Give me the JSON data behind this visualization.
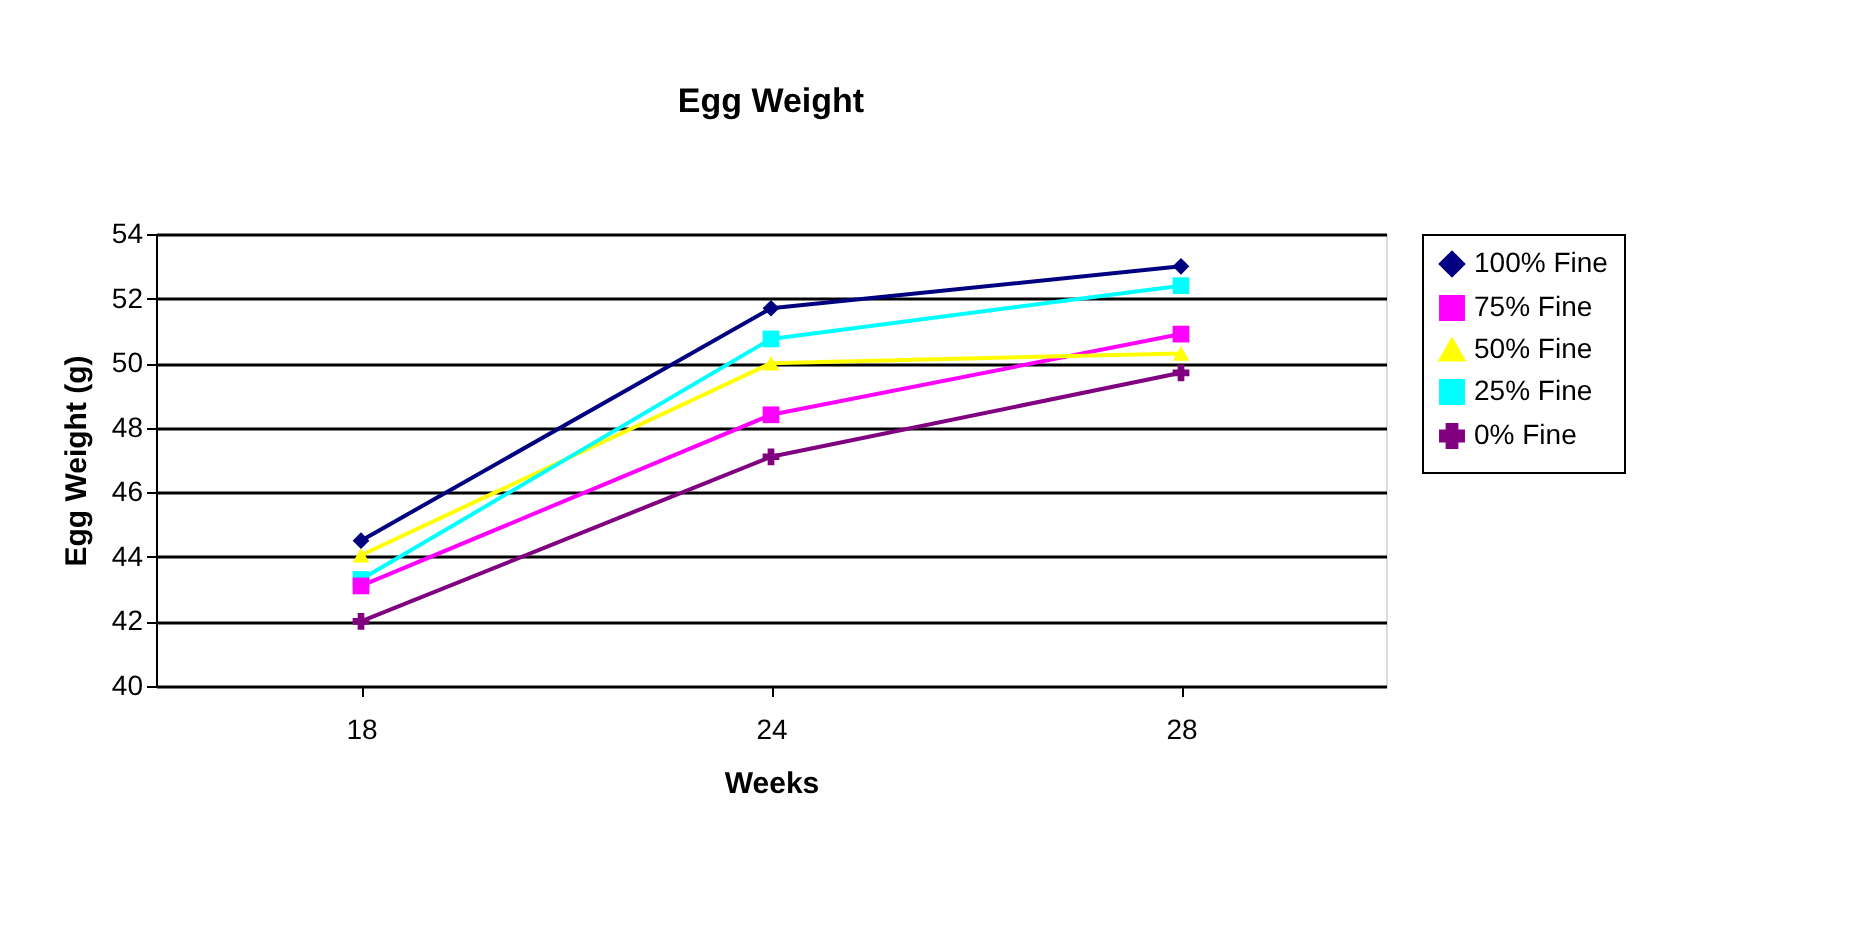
{
  "chart_data": {
    "type": "line",
    "title": "Egg Weight",
    "xlabel": "Weeks",
    "ylabel": "Egg Weight (g)",
    "categories": [
      "18",
      "24",
      "28"
    ],
    "series": [
      {
        "name": "100% Fine",
        "color": "#000080",
        "marker": "diamond",
        "values": [
          44.5,
          51.7,
          53.0
        ]
      },
      {
        "name": "75% Fine",
        "color": "#ff00ff",
        "marker": "square",
        "values": [
          43.1,
          48.4,
          50.9
        ]
      },
      {
        "name": "50% Fine",
        "color": "#ffff00",
        "marker": "triangle",
        "values": [
          44.05,
          50.0,
          50.3
        ]
      },
      {
        "name": "25% Fine",
        "color": "#00ffff",
        "marker": "square",
        "values": [
          43.3,
          50.75,
          52.4
        ]
      },
      {
        "name": "0% Fine",
        "color": "#800080",
        "marker": "cross",
        "values": [
          42.0,
          47.1,
          49.7
        ]
      }
    ],
    "ylim": [
      40,
      54
    ],
    "yticks": [
      40,
      42,
      44,
      46,
      48,
      50,
      52,
      54
    ],
    "grid": "y",
    "legend": "right"
  }
}
